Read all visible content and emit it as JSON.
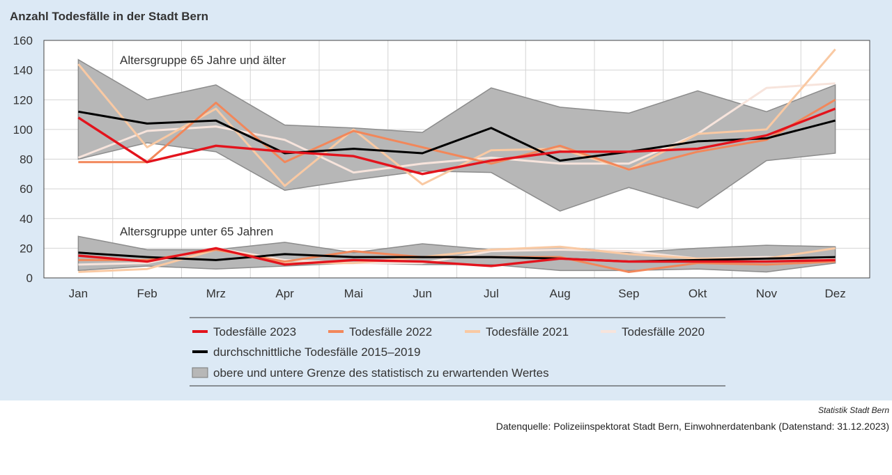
{
  "chart_data": {
    "type": "line",
    "title": "Anzahl Todesfälle in der Stadt Bern",
    "categories": [
      "Jan",
      "Feb",
      "Mrz",
      "Apr",
      "Mai",
      "Jun",
      "Jul",
      "Aug",
      "Sep",
      "Okt",
      "Nov",
      "Dez"
    ],
    "ylim": [
      0,
      160
    ],
    "yticks": [
      0,
      20,
      40,
      60,
      80,
      100,
      120,
      140,
      160
    ],
    "grid": true,
    "legend_position": "bottom",
    "groups": [
      {
        "label": "Altersgruppe 65 Jahre und älter",
        "band": {
          "upper": [
            147,
            120,
            130,
            103,
            101,
            98,
            128,
            115,
            111,
            126,
            112,
            130
          ],
          "lower": [
            80,
            91,
            85,
            59,
            66,
            72,
            71,
            45,
            61,
            47,
            79,
            84
          ]
        },
        "series": [
          {
            "key": "avg",
            "values": [
              112,
              104,
              106,
              84,
              87,
              84,
              101,
              79,
              85,
              92,
              94,
              106
            ]
          },
          {
            "key": "y2020",
            "values": [
              81,
              99,
              102,
              93,
              71,
              77,
              81,
              77,
              77,
              97,
              128,
              131
            ]
          },
          {
            "key": "y2021",
            "values": [
              144,
              88,
              114,
              62,
              100,
              63,
              86,
              87,
              73,
              97,
              100,
              154
            ]
          },
          {
            "key": "y2022",
            "values": [
              78,
              78,
              118,
              78,
              99,
              88,
              77,
              89,
              73,
              85,
              93,
              120
            ]
          },
          {
            "key": "y2023",
            "values": [
              108,
              78,
              89,
              85,
              82,
              70,
              79,
              85,
              85,
              87,
              96,
              114
            ]
          }
        ]
      },
      {
        "label": "Altersgruppe unter 65 Jahren",
        "band": {
          "upper": [
            28,
            19,
            19,
            24,
            17,
            23,
            19,
            21,
            17,
            20,
            22,
            21
          ],
          "lower": [
            5,
            8,
            6,
            8,
            10,
            9,
            9,
            5,
            5,
            6,
            4,
            10
          ]
        },
        "series": [
          {
            "key": "avg",
            "values": [
              17,
              14,
              12,
              16,
              14,
              14,
              14,
              13,
              11,
              12,
              13,
              14
            ]
          },
          {
            "key": "y2020",
            "values": [
              9,
              10,
              20,
              12,
              10,
              10,
              18,
              19,
              18,
              13,
              14,
              13
            ]
          },
          {
            "key": "y2021",
            "values": [
              4,
              6,
              19,
              10,
              10,
              14,
              19,
              21,
              16,
              13,
              13,
              20
            ]
          },
          {
            "key": "y2022",
            "values": [
              12,
              12,
              19,
              11,
              18,
              14,
              14,
              14,
              4,
              10,
              9,
              11
            ]
          },
          {
            "key": "y2023",
            "values": [
              15,
              11,
              20,
              9,
              12,
              11,
              8,
              13,
              11,
              11,
              11,
              12
            ]
          }
        ]
      }
    ],
    "series_styles": {
      "y2023": {
        "name": "Todesfälle 2023",
        "color": "#e3131c"
      },
      "y2022": {
        "name": "Todesfälle 2022",
        "color": "#f2875a"
      },
      "y2021": {
        "name": "Todesfälle 2021",
        "color": "#f9c9a3"
      },
      "y2020": {
        "name": "Todesfälle 2020",
        "color": "#f7e4dc"
      },
      "avg": {
        "name": "durchschnittliche Todesfälle 2015–2019",
        "color": "#000000"
      },
      "band": {
        "name": "obere und untere Grenze des statistisch zu erwartenden Wertes",
        "color": "#b7b7b7"
      }
    }
  },
  "footer": {
    "organization": "Statistik Stadt Bern",
    "source": "Datenquelle: Polizeiinspektorat Stadt Bern, Einwohnerdatenbank (Datenstand: 31.12.2023)"
  }
}
